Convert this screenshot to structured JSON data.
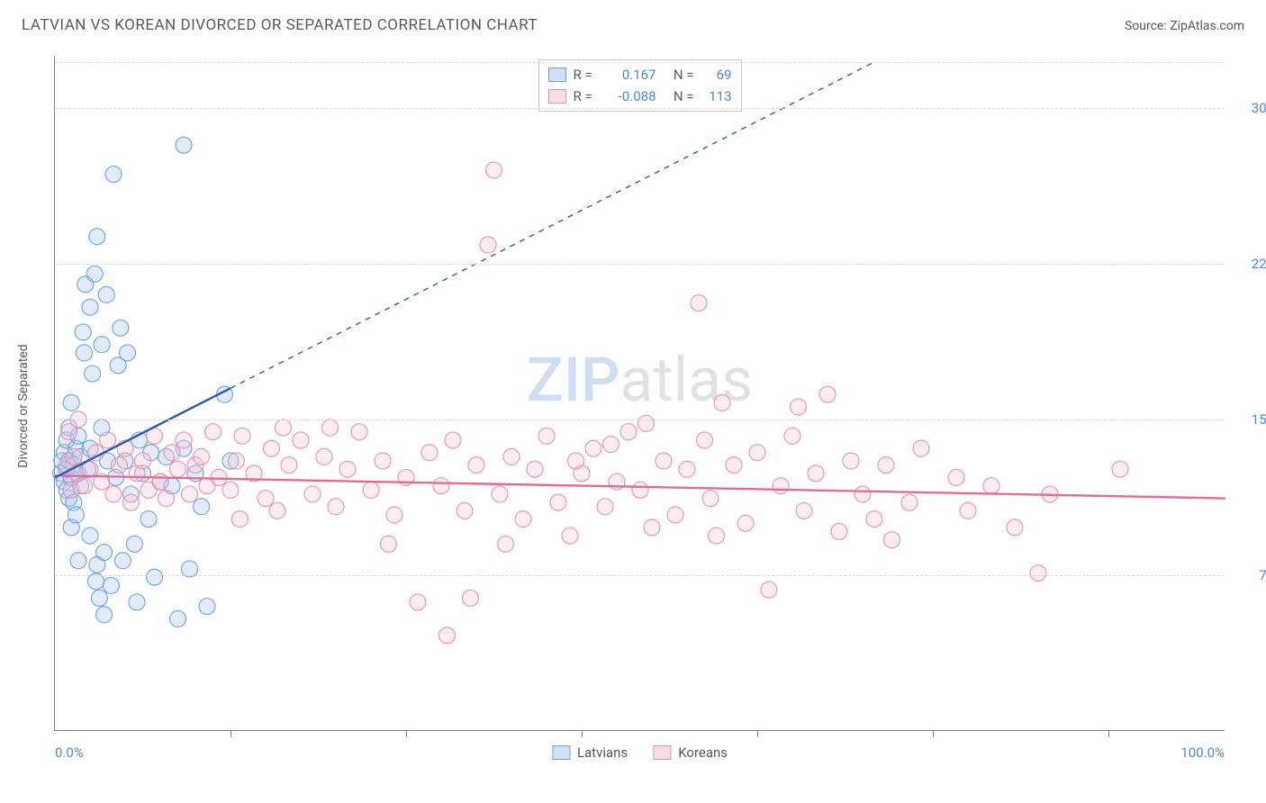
{
  "header": {
    "title": "LATVIAN VS KOREAN DIVORCED OR SEPARATED CORRELATION CHART",
    "source_label": "Source: ZipAtlas.com"
  },
  "chart": {
    "type": "scatter",
    "ylabel": "Divorced or Separated",
    "xlim": [
      0,
      100
    ],
    "ylim": [
      0,
      32.5
    ],
    "x_ticks_minor": [
      15,
      30,
      45,
      60,
      75,
      90
    ],
    "y_gridlines": [
      7.5,
      15.0,
      22.5,
      30.0,
      32.2
    ],
    "y_tick_labels": [
      "7.5%",
      "15.0%",
      "22.5%",
      "30.0%"
    ],
    "y_tick_values": [
      7.5,
      15.0,
      22.5,
      30.0
    ],
    "x_min_label": "0.0%",
    "x_max_label": "100.0%",
    "background_color": "#ffffff",
    "grid_color": "#d8d8d8",
    "axis_color": "#808080",
    "marker_radius": 9,
    "marker_fill_opacity": 0.35,
    "marker_stroke_opacity": 0.9,
    "marker_stroke_width": 1.2,
    "line_width_solid": 2.4,
    "line_width_dashed": 1.4,
    "dash_pattern": "6,6",
    "series": {
      "latvians": {
        "label": "Latvians",
        "color_fill": "#a9c7ef",
        "color_stroke": "#6da0e3",
        "swatch_fill": "#cfe0f7",
        "swatch_border": "#6da0e3",
        "trend_color": "#2d5fb3",
        "R": "0.167",
        "N": "69",
        "trend_solid": {
          "x1": 0,
          "y1": 12.2,
          "x2": 15,
          "y2": 16.5
        },
        "trend_dashed": {
          "x1": 15,
          "y1": 16.5,
          "x2": 70,
          "y2": 32.2
        },
        "points": [
          [
            0.5,
            12.4
          ],
          [
            0.6,
            13.0
          ],
          [
            0.8,
            12.0
          ],
          [
            0.8,
            13.4
          ],
          [
            1.0,
            11.6
          ],
          [
            1.0,
            12.6
          ],
          [
            1.0,
            14.0
          ],
          [
            1.2,
            11.2
          ],
          [
            1.2,
            13.0
          ],
          [
            1.2,
            14.6
          ],
          [
            1.4,
            9.8
          ],
          [
            1.4,
            12.2
          ],
          [
            1.4,
            15.8
          ],
          [
            1.6,
            12.8
          ],
          [
            1.6,
            11.0
          ],
          [
            1.8,
            13.6
          ],
          [
            1.8,
            10.4
          ],
          [
            2.0,
            12.4
          ],
          [
            2.0,
            14.2
          ],
          [
            2.2,
            11.8
          ],
          [
            2.2,
            13.2
          ],
          [
            2.4,
            19.2
          ],
          [
            2.5,
            18.2
          ],
          [
            2.6,
            21.5
          ],
          [
            2.8,
            12.6
          ],
          [
            3.0,
            13.6
          ],
          [
            3.0,
            20.4
          ],
          [
            3.2,
            17.2
          ],
          [
            3.4,
            22.0
          ],
          [
            3.5,
            7.2
          ],
          [
            3.6,
            8.0
          ],
          [
            3.6,
            23.8
          ],
          [
            3.8,
            6.4
          ],
          [
            4.0,
            14.6
          ],
          [
            4.0,
            18.6
          ],
          [
            4.2,
            8.6
          ],
          [
            4.2,
            5.6
          ],
          [
            4.4,
            21.0
          ],
          [
            4.5,
            13.0
          ],
          [
            4.8,
            7.0
          ],
          [
            5.0,
            26.8
          ],
          [
            5.2,
            12.2
          ],
          [
            5.4,
            17.6
          ],
          [
            5.6,
            19.4
          ],
          [
            6.0,
            13.0
          ],
          [
            6.2,
            18.2
          ],
          [
            6.5,
            11.4
          ],
          [
            7.0,
            6.2
          ],
          [
            7.2,
            14.0
          ],
          [
            7.5,
            12.4
          ],
          [
            8.0,
            10.2
          ],
          [
            8.2,
            13.4
          ],
          [
            8.5,
            7.4
          ],
          [
            9.0,
            12.0
          ],
          [
            9.5,
            13.2
          ],
          [
            10.0,
            11.8
          ],
          [
            10.5,
            5.4
          ],
          [
            11.0,
            28.2
          ],
          [
            11.0,
            13.6
          ],
          [
            11.5,
            7.8
          ],
          [
            12.0,
            12.4
          ],
          [
            12.5,
            10.8
          ],
          [
            13.0,
            6.0
          ],
          [
            14.5,
            16.2
          ],
          [
            15.0,
            13.0
          ],
          [
            5.8,
            8.2
          ],
          [
            6.8,
            9.0
          ],
          [
            2.0,
            8.2
          ],
          [
            3.0,
            9.4
          ]
        ]
      },
      "koreans": {
        "label": "Koreans",
        "color_fill": "#f6c5d5",
        "color_stroke": "#e78fb0",
        "swatch_fill": "#fbdbe6",
        "swatch_border": "#e78fb0",
        "trend_color": "#e36b96",
        "R": "-0.088",
        "N": "113",
        "trend_solid": {
          "x1": 0,
          "y1": 12.3,
          "x2": 100,
          "y2": 11.2
        },
        "points": [
          [
            1.0,
            12.8
          ],
          [
            1.2,
            14.4
          ],
          [
            1.4,
            11.6
          ],
          [
            1.6,
            13.2
          ],
          [
            1.8,
            12.4
          ],
          [
            2.0,
            15.0
          ],
          [
            2.5,
            11.8
          ],
          [
            3.0,
            12.6
          ],
          [
            3.5,
            13.4
          ],
          [
            4.0,
            12.0
          ],
          [
            4.5,
            14.0
          ],
          [
            5.0,
            11.4
          ],
          [
            5.5,
            12.8
          ],
          [
            6.0,
            13.6
          ],
          [
            6.5,
            11.0
          ],
          [
            7.0,
            12.4
          ],
          [
            7.5,
            13.0
          ],
          [
            8.0,
            11.6
          ],
          [
            8.5,
            14.2
          ],
          [
            9.0,
            12.0
          ],
          [
            9.5,
            11.2
          ],
          [
            10.0,
            13.4
          ],
          [
            10.5,
            12.6
          ],
          [
            11.0,
            14.0
          ],
          [
            11.5,
            11.4
          ],
          [
            12.0,
            12.8
          ],
          [
            12.5,
            13.2
          ],
          [
            13.0,
            11.8
          ],
          [
            13.5,
            14.4
          ],
          [
            14.0,
            12.2
          ],
          [
            15.0,
            11.6
          ],
          [
            15.5,
            13.0
          ],
          [
            16.0,
            14.2
          ],
          [
            17.0,
            12.4
          ],
          [
            18.0,
            11.2
          ],
          [
            18.5,
            13.6
          ],
          [
            19.0,
            10.6
          ],
          [
            20.0,
            12.8
          ],
          [
            21.0,
            14.0
          ],
          [
            22.0,
            11.4
          ],
          [
            23.0,
            13.2
          ],
          [
            24.0,
            10.8
          ],
          [
            25.0,
            12.6
          ],
          [
            26.0,
            14.4
          ],
          [
            27.0,
            11.6
          ],
          [
            28.0,
            13.0
          ],
          [
            29.0,
            10.4
          ],
          [
            30.0,
            12.2
          ],
          [
            31.0,
            6.2
          ],
          [
            32.0,
            13.4
          ],
          [
            33.0,
            11.8
          ],
          [
            33.5,
            4.6
          ],
          [
            34.0,
            14.0
          ],
          [
            35.0,
            10.6
          ],
          [
            36.0,
            12.8
          ],
          [
            37.0,
            23.4
          ],
          [
            37.5,
            27.0
          ],
          [
            38.0,
            11.4
          ],
          [
            39.0,
            13.2
          ],
          [
            40.0,
            10.2
          ],
          [
            41.0,
            12.6
          ],
          [
            42.0,
            14.2
          ],
          [
            43.0,
            11.0
          ],
          [
            44.0,
            9.4
          ],
          [
            45.0,
            12.4
          ],
          [
            46.0,
            13.6
          ],
          [
            47.0,
            10.8
          ],
          [
            48.0,
            12.0
          ],
          [
            49.0,
            14.4
          ],
          [
            50.0,
            11.6
          ],
          [
            51.0,
            9.8
          ],
          [
            52.0,
            13.0
          ],
          [
            53.0,
            10.4
          ],
          [
            54.0,
            12.6
          ],
          [
            55.0,
            20.6
          ],
          [
            55.5,
            14.0
          ],
          [
            56.0,
            11.2
          ],
          [
            57.0,
            15.8
          ],
          [
            58.0,
            12.8
          ],
          [
            59.0,
            10.0
          ],
          [
            60.0,
            13.4
          ],
          [
            61.0,
            6.8
          ],
          [
            62.0,
            11.8
          ],
          [
            63.0,
            14.2
          ],
          [
            64.0,
            10.6
          ],
          [
            65.0,
            12.4
          ],
          [
            66.0,
            16.2
          ],
          [
            67.0,
            9.6
          ],
          [
            68.0,
            13.0
          ],
          [
            69.0,
            11.4
          ],
          [
            70.0,
            10.2
          ],
          [
            71.0,
            12.8
          ],
          [
            71.5,
            9.2
          ],
          [
            73.0,
            11.0
          ],
          [
            74.0,
            13.6
          ],
          [
            77.0,
            12.2
          ],
          [
            78.0,
            10.6
          ],
          [
            80.0,
            11.8
          ],
          [
            82.0,
            9.8
          ],
          [
            84.0,
            7.6
          ],
          [
            85.0,
            11.4
          ],
          [
            91.0,
            12.6
          ],
          [
            35.5,
            6.4
          ],
          [
            38.5,
            9.0
          ],
          [
            44.5,
            13.0
          ],
          [
            50.5,
            14.8
          ],
          [
            56.5,
            9.4
          ],
          [
            63.5,
            15.6
          ],
          [
            28.5,
            9.0
          ],
          [
            19.5,
            14.6
          ],
          [
            15.8,
            10.2
          ],
          [
            23.5,
            14.6
          ],
          [
            47.5,
            13.8
          ]
        ]
      }
    }
  },
  "legend_top": {
    "r_label": "R =",
    "n_label": "N ="
  },
  "watermark": {
    "part1": "ZIP",
    "part2": "atlas"
  }
}
